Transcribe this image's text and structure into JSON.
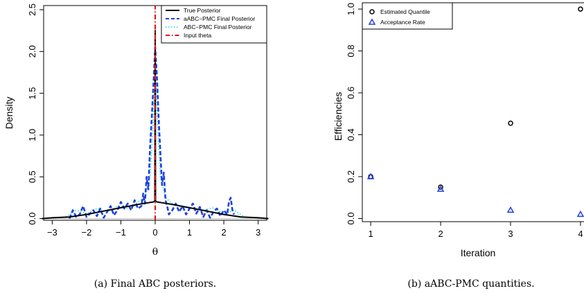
{
  "colors": {
    "true_posterior": "#000000",
    "aabc_pmc": "#1f3fe0",
    "abc_pmc": "#3fe6e6",
    "input_theta": "#e01010",
    "quantile_marker": "#000000",
    "acceptance_marker": "#1f3fe0"
  },
  "chart_data": [
    {
      "type": "line",
      "caption": "(a) Final ABC posteriors.",
      "xlabel": "θ",
      "ylabel": "Density",
      "xlim": [
        -3.25,
        3.25
      ],
      "ylim": [
        -0.02,
        2.55
      ],
      "xticks": [
        -3,
        -2,
        -1,
        0,
        1,
        2,
        3
      ],
      "xtick_labels": [
        "−3",
        "−2",
        "−1",
        "0",
        "1",
        "2",
        "3"
      ],
      "yticks": [
        0.0,
        0.5,
        1.0,
        1.5,
        2.0,
        2.5
      ],
      "ytick_labels": [
        "0.0",
        "0.5",
        "1.0",
        "1.5",
        "2.0",
        "2.5"
      ],
      "legend_position": "top-right",
      "series": [
        {
          "name": "True Posterior",
          "style": "solid",
          "color_key": "true_posterior",
          "x": [
            -3.3,
            -3.0,
            -2.5,
            -2.0,
            -1.5,
            -1.0,
            -0.5,
            -0.2,
            -0.05,
            -0.01,
            0.0,
            0.01,
            0.05,
            0.2,
            0.5,
            1.0,
            1.5,
            2.0,
            2.5,
            3.0,
            3.3
          ],
          "y": [
            0.0,
            0.01,
            0.02,
            0.05,
            0.09,
            0.13,
            0.17,
            0.19,
            0.2,
            0.21,
            2.25,
            0.21,
            0.2,
            0.19,
            0.17,
            0.13,
            0.09,
            0.05,
            0.02,
            0.01,
            0.0
          ]
        },
        {
          "name": "aABC−PMC Final Posterior",
          "style": "dashed",
          "color_key": "aabc_pmc",
          "x": [
            -2.5,
            -2.4,
            -2.3,
            -2.2,
            -2.1,
            -2.0,
            -1.9,
            -1.8,
            -1.7,
            -1.6,
            -1.5,
            -1.4,
            -1.3,
            -1.2,
            -1.1,
            -1.0,
            -0.9,
            -0.8,
            -0.7,
            -0.6,
            -0.5,
            -0.4,
            -0.35,
            -0.3,
            -0.25,
            -0.2,
            -0.15,
            -0.1,
            -0.05,
            0.0,
            0.05,
            0.1,
            0.15,
            0.2,
            0.25,
            0.3,
            0.35,
            0.4,
            0.5,
            0.6,
            0.7,
            0.8,
            0.9,
            1.0,
            1.1,
            1.2,
            1.3,
            1.4,
            1.5,
            1.6,
            1.7,
            1.8,
            1.9,
            2.0,
            2.1,
            2.15,
            2.2,
            2.25,
            2.3
          ],
          "y": [
            0.0,
            0.1,
            0.02,
            0.05,
            0.15,
            0.02,
            0.06,
            0.1,
            0.03,
            0.12,
            0.01,
            0.08,
            0.15,
            0.04,
            0.1,
            0.2,
            0.12,
            0.18,
            0.1,
            0.22,
            0.12,
            0.15,
            0.3,
            0.18,
            0.5,
            0.35,
            0.85,
            1.2,
            1.6,
            2.05,
            1.7,
            1.2,
            0.8,
            0.4,
            0.55,
            0.22,
            0.15,
            0.05,
            0.1,
            0.18,
            0.08,
            0.15,
            0.05,
            0.12,
            0.18,
            0.06,
            0.14,
            0.02,
            0.1,
            0.01,
            0.08,
            0.12,
            0.03,
            0.1,
            0.05,
            0.2,
            0.25,
            0.1,
            0.05
          ]
        },
        {
          "name": "ABC−PMC Final Posterior",
          "style": "dotted",
          "color_key": "abc_pmc",
          "x": [
            -2.6,
            -2.3,
            -2.0,
            -1.7,
            -1.4,
            -1.1,
            -0.8,
            -0.5,
            -0.3,
            -0.15,
            -0.05,
            0.0,
            0.05,
            0.15,
            0.3,
            0.5,
            0.8,
            1.1,
            1.4,
            1.7,
            2.0,
            2.3,
            2.6
          ],
          "y": [
            0.02,
            0.1,
            0.06,
            0.12,
            0.08,
            0.15,
            0.12,
            0.2,
            0.25,
            0.5,
            1.2,
            2.1,
            1.3,
            0.5,
            0.25,
            0.18,
            0.14,
            0.12,
            0.1,
            0.13,
            0.06,
            0.1,
            0.02
          ]
        },
        {
          "name": "Input theta",
          "style": "dashdot",
          "color_key": "input_theta",
          "x": [
            0,
            0
          ],
          "y": [
            -0.02,
            2.55
          ]
        }
      ]
    },
    {
      "type": "scatter",
      "caption": "(b) aABC-PMC quantities.",
      "xlabel": "Iteration",
      "ylabel": "Efficiencies",
      "xlim": [
        0.88,
        4.05
      ],
      "ylim": [
        -0.015,
        1.03
      ],
      "xticks": [
        1,
        2,
        3,
        4
      ],
      "xtick_labels": [
        "1",
        "2",
        "3",
        "4"
      ],
      "yticks": [
        0.0,
        0.2,
        0.4,
        0.6,
        0.8,
        1.0
      ],
      "ytick_labels": [
        "0.0",
        "0.2",
        "0.4",
        "0.6",
        "0.8",
        "1.0"
      ],
      "legend_position": "top-left",
      "series": [
        {
          "name": "Estimated Quantile",
          "marker": "circle",
          "color_key": "quantile_marker",
          "x": [
            1,
            2,
            3,
            4
          ],
          "y": [
            0.2,
            0.15,
            0.455,
            1.0
          ]
        },
        {
          "name": "Acceptance Rate",
          "marker": "triangle",
          "color_key": "acceptance_marker",
          "x": [
            1,
            2,
            3,
            4
          ],
          "y": [
            0.2,
            0.14,
            0.04,
            0.02
          ]
        }
      ]
    }
  ]
}
